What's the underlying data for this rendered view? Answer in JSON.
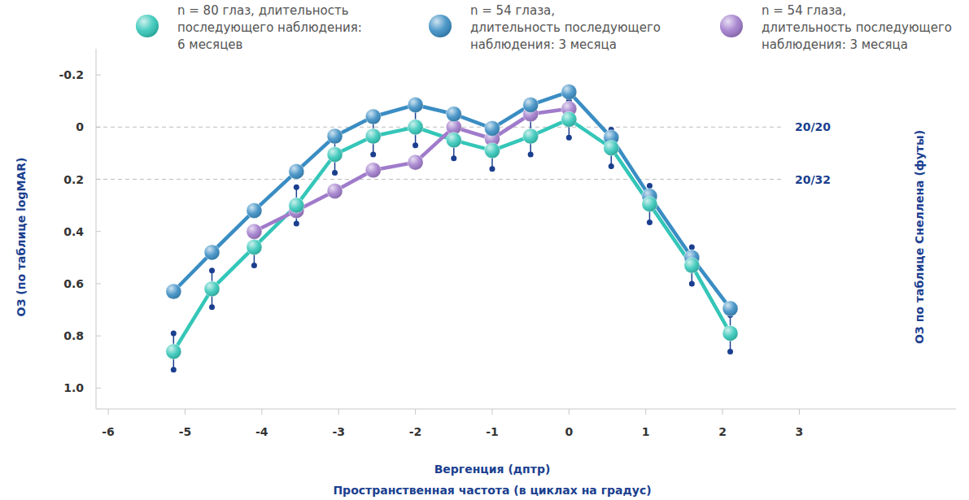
{
  "chart_data": {
    "type": "line",
    "ylabel": "ОЗ (по таблице logMAR)",
    "y2label": "ОЗ по таблице Снеллена (футы)",
    "xlabel": [
      "Вергенция (дптр)",
      "Пространственная частота (в циклах на градус)"
    ],
    "x": [
      -5.15,
      -4.65,
      -4.1,
      -3.55,
      -3.05,
      -2.55,
      -2.0,
      -1.5,
      -1.0,
      -0.5,
      0.0,
      0.55,
      1.05,
      1.6,
      2.1
    ],
    "xlim": [
      -6.16,
      5.04
    ],
    "xticks": [
      -6,
      -5,
      -4,
      -3,
      -2,
      -1,
      0,
      1,
      2,
      3
    ],
    "ylim": [
      1.08,
      -0.3
    ],
    "yticks": [
      -0.2,
      0,
      0.2,
      0.4,
      0.6,
      0.8,
      {
        "value": 1,
        "label": "1.0"
      }
    ],
    "y2lim": [
      1.08,
      -0.3
    ],
    "y2ticks": [
      {
        "value": 0,
        "label": "20/20"
      },
      {
        "value": 0.2,
        "label": "20/32"
      }
    ],
    "grid": false,
    "legend": "top",
    "marker": "circle",
    "series": [
      {
        "name": "n = 80 глаз, длительность последующего наблюдения: 6 месяцев",
        "color": "#34c6b8",
        "values": [
          0.86,
          0.62,
          0.46,
          0.3,
          0.105,
          0.035,
          0.0,
          0.05,
          0.09,
          0.035,
          -0.03,
          0.08,
          0.295,
          0.53,
          0.79
        ],
        "errors": [
          0.07,
          0.07,
          0.07,
          0.07,
          0.07,
          0.07,
          0.07,
          0.07,
          0.07,
          0.07,
          0.07,
          0.07,
          0.07,
          0.07,
          0.07
        ]
      },
      {
        "name": "n = 54 глаза, длительность последующего наблюдения: 3 месяца",
        "color": "#3a8dc3",
        "values": [
          0.63,
          0.48,
          0.32,
          0.17,
          0.035,
          -0.04,
          -0.085,
          -0.05,
          0.005,
          -0.085,
          -0.135,
          0.04,
          0.265,
          0.5,
          0.695
        ]
      },
      {
        "name": "n = 54 глаза, длительность последующего наблюдения: 3 месяца",
        "color": "#a07bcb",
        "values": [
          null,
          null,
          0.4,
          0.32,
          0.245,
          0.165,
          0.135,
          0.0,
          0.045,
          -0.05,
          -0.07,
          null,
          null,
          null,
          null
        ]
      }
    ]
  }
}
